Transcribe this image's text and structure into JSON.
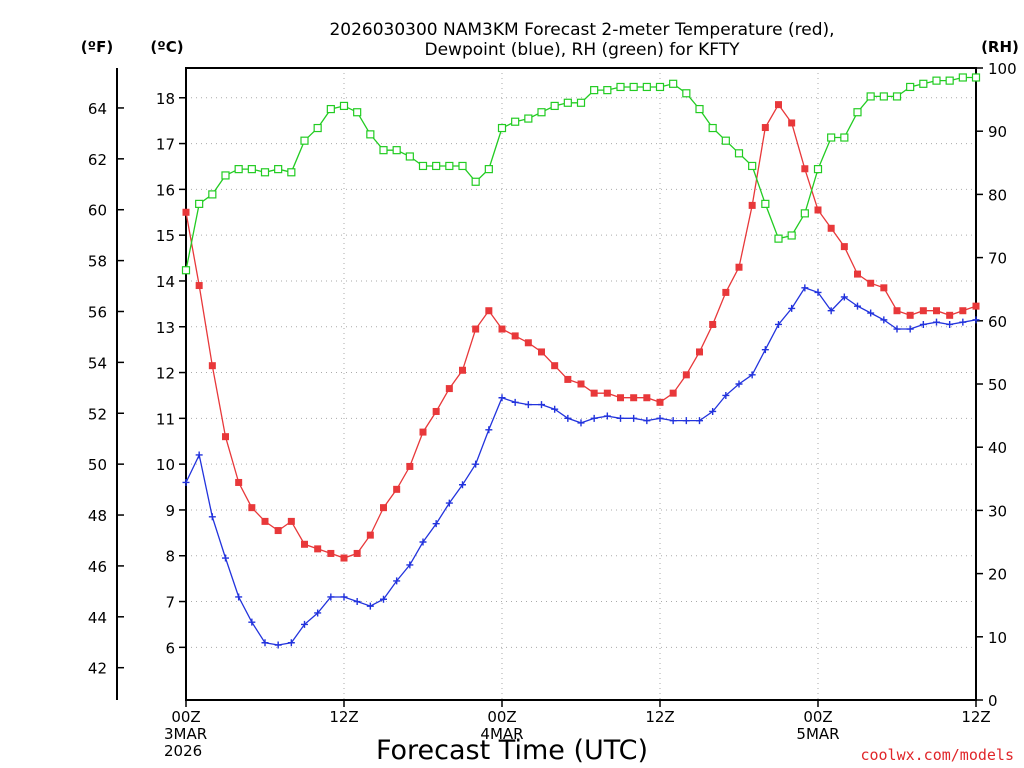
{
  "chart_data": {
    "type": "line",
    "title": "2026030300 NAM3KM Forecast 2-meter Temperature (red),",
    "subtitle": "Dewpoint (blue), RH (green) for KFTY",
    "xlabel": "Forecast Time (UTC)",
    "unit_f": "(ºF)",
    "unit_c": "(ºC)",
    "unit_rh": "(RH)",
    "credit": "coolwx.com/models",
    "x_range_hours": [
      0,
      60
    ],
    "ylim_c": [
      4.85,
      18.65
    ],
    "ylim_rh": [
      0,
      100
    ],
    "ticks_c": [
      6,
      7,
      8,
      9,
      10,
      11,
      12,
      13,
      14,
      15,
      16,
      17,
      18
    ],
    "ticks_f": [
      42,
      44,
      46,
      48,
      50,
      52,
      54,
      56,
      58,
      60,
      62,
      64
    ],
    "ticks_rh": [
      0,
      10,
      20,
      30,
      40,
      50,
      60,
      70,
      80,
      90,
      100
    ],
    "x_ticks": [
      {
        "hour": 0,
        "lines": [
          "00Z",
          "3MAR",
          "2026"
        ]
      },
      {
        "hour": 12,
        "lines": [
          "12Z"
        ]
      },
      {
        "hour": 24,
        "lines": [
          "00Z",
          "4MAR"
        ]
      },
      {
        "hour": 36,
        "lines": [
          "12Z"
        ]
      },
      {
        "hour": 48,
        "lines": [
          "00Z",
          "5MAR"
        ]
      },
      {
        "hour": 60,
        "lines": [
          "12Z"
        ]
      }
    ],
    "series": [
      {
        "name": "2-meter Temperature",
        "units": "°C",
        "color": "#e8383a",
        "marker": "filled-square",
        "values": [
          15.5,
          13.9,
          12.15,
          10.6,
          9.6,
          9.05,
          8.75,
          8.55,
          8.75,
          8.25,
          8.15,
          8.05,
          7.95,
          8.05,
          8.45,
          9.05,
          9.45,
          9.95,
          10.7,
          11.15,
          11.65,
          12.05,
          12.95,
          13.35,
          12.95,
          12.8,
          12.65,
          12.45,
          12.15,
          11.85,
          11.75,
          11.55,
          11.55,
          11.45,
          11.45,
          11.45,
          11.35,
          11.55,
          11.95,
          12.45,
          13.05,
          13.75,
          14.3,
          15.65,
          17.35,
          17.85,
          17.45,
          16.45,
          15.55,
          15.15,
          14.75,
          14.15,
          13.95,
          13.85,
          13.35,
          13.25,
          13.35,
          13.35,
          13.25,
          13.35,
          13.45
        ]
      },
      {
        "name": "Dewpoint",
        "units": "°C",
        "color": "#2233dd",
        "marker": "plus",
        "values": [
          9.6,
          10.2,
          8.85,
          7.95,
          7.1,
          6.55,
          6.1,
          6.05,
          6.1,
          6.5,
          6.75,
          7.1,
          7.1,
          7.0,
          6.9,
          7.05,
          7.45,
          7.8,
          8.3,
          8.7,
          9.15,
          9.55,
          10.0,
          10.75,
          11.45,
          11.35,
          11.3,
          11.3,
          11.2,
          11.0,
          10.9,
          11.0,
          11.05,
          11.0,
          11.0,
          10.95,
          11.0,
          10.95,
          10.95,
          10.95,
          11.15,
          11.5,
          11.75,
          11.95,
          12.5,
          13.05,
          13.4,
          13.85,
          13.75,
          13.35,
          13.65,
          13.45,
          13.3,
          13.15,
          12.95,
          12.95,
          13.05,
          13.1,
          13.05,
          13.1,
          13.15
        ]
      },
      {
        "name": "RH",
        "units": "%",
        "color": "#22cc22",
        "marker": "open-square",
        "values": [
          68,
          78.5,
          80,
          83,
          84,
          84,
          83.5,
          84,
          83.5,
          88.5,
          90.5,
          93.5,
          94,
          93,
          89.5,
          87,
          87,
          86,
          84.5,
          84.5,
          84.5,
          84.5,
          82,
          84,
          90.5,
          91.5,
          92,
          93,
          94,
          94.5,
          94.5,
          96.5,
          96.5,
          97,
          97,
          97,
          97,
          97.5,
          96,
          93.5,
          90.5,
          88.5,
          86.5,
          84.5,
          78.5,
          73,
          73.5,
          77,
          84,
          89,
          89,
          93,
          95.5,
          95.5,
          95.5,
          97,
          97.5,
          98,
          98,
          98.5,
          98.5
        ]
      }
    ]
  }
}
